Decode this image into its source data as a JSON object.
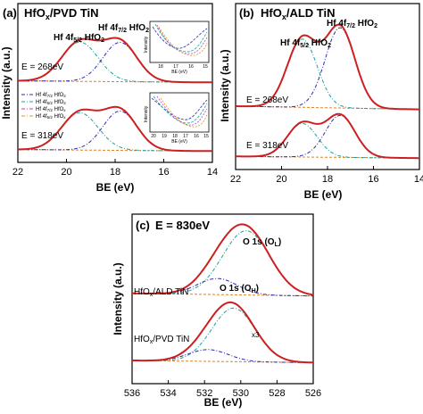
{
  "chart_data": [
    {
      "type": "line",
      "panel_label": "(a)",
      "title": "HfOx/PVD TiN",
      "title_main": "HfO",
      "title_sub": "x",
      "title_rest": "/PVD TiN",
      "xlabel": "BE (eV)",
      "ylabel": "Intensity (a.u.)",
      "xlim": [
        22,
        14
      ],
      "xticks": [
        "22",
        "20",
        "18",
        "16",
        "14"
      ],
      "peak_labels": [
        {
          "text": "Hf 4f",
          "sub": "5/2",
          "rest": " HfO",
          "sub2": "2"
        },
        {
          "text": "Hf 4f",
          "sub": "7/2",
          "rest": " HfO",
          "sub2": "2"
        }
      ],
      "energy_labels": [
        "E = 268eV",
        "E = 318eV"
      ],
      "legend": [
        {
          "text": "Hf 4f",
          "sub": "7/2",
          "rest": " HfO",
          "sub2": "2",
          "color": "#2a2ab0"
        },
        {
          "text": "Hf 4f",
          "sub": "5/2",
          "rest": " HfO",
          "sub2": "2",
          "color": "#1aa0a0"
        },
        {
          "text": "Hf 4f",
          "sub": "7/2",
          "rest": " HfO",
          "sub2": "x",
          "color": "#c040c0"
        },
        {
          "text": "Hf 4f",
          "sub": "5/2",
          "rest": " HfO",
          "sub2": "x",
          "color": "#d0a020"
        }
      ],
      "series": [
        {
          "energy": "E = 268eV",
          "peaks": [
            {
              "center": 19.45,
              "amplitude": 1.0,
              "width": 0.75
            },
            {
              "center": 17.8,
              "amplitude": 1.0,
              "width": 0.7
            }
          ]
        },
        {
          "energy": "E = 318eV",
          "peaks": [
            {
              "center": 19.45,
              "amplitude": 0.95,
              "width": 0.75
            },
            {
              "center": 17.8,
              "amplitude": 1.0,
              "width": 0.7
            }
          ]
        }
      ],
      "insets": [
        {
          "ylabel": "Intensity",
          "xlabel": "BE (eV)",
          "xticks": [
            "18",
            "17",
            "16",
            "15"
          ]
        },
        {
          "ylabel": "Intensity",
          "xlabel": "BE (eV)",
          "xticks": [
            "20",
            "19",
            "18",
            "17",
            "16",
            "15"
          ]
        }
      ]
    },
    {
      "type": "line",
      "panel_label": "(b)",
      "title": "HfOx/ALD TiN",
      "title_main": "HfO",
      "title_sub": "x",
      "title_rest": "/ALD TiN",
      "xlabel": "BE (eV)",
      "ylabel": "Intensity (a.u.)",
      "xlim": [
        22,
        14
      ],
      "xticks": [
        "22",
        "20",
        "18",
        "16",
        "14"
      ],
      "peak_labels": [
        {
          "text": "Hf 4f",
          "sub": "5/2",
          "rest": " HfO",
          "sub2": "2"
        },
        {
          "text": "Hf 4f",
          "sub": "7/2",
          "rest": " HfO",
          "sub2": "2"
        }
      ],
      "energy_labels": [
        "E = 268eV",
        "E = 318eV"
      ],
      "series": [
        {
          "energy": "E = 268eV",
          "peaks": [
            {
              "center": 19.1,
              "amplitude": 0.85,
              "width": 0.65
            },
            {
              "center": 17.45,
              "amplitude": 1.0,
              "width": 0.65
            }
          ]
        },
        {
          "energy": "E = 318eV",
          "peaks": [
            {
              "center": 19.1,
              "amplitude": 0.8,
              "width": 0.65
            },
            {
              "center": 17.45,
              "amplitude": 1.0,
              "width": 0.65
            }
          ]
        }
      ]
    },
    {
      "type": "line",
      "panel_label": "(c)",
      "title": "E = 830eV",
      "xlabel": "BE (eV)",
      "ylabel": "Intensity (a.u.)",
      "xlim": [
        536,
        526
      ],
      "xticks": [
        "536",
        "534",
        "532",
        "530",
        "528",
        "526"
      ],
      "peak_labels": [
        {
          "text": "O 1s (O",
          "sub": "L",
          "rest": ")"
        },
        {
          "text": "O 1s (O",
          "sub": "H",
          "rest": ")"
        }
      ],
      "sample_labels": [
        {
          "text": "HfO",
          "sub": "x",
          "rest": "/ALD TiN"
        },
        {
          "text": "HfO",
          "sub": "x",
          "rest": "/PVD TiN"
        }
      ],
      "scale_note": "x3",
      "series": [
        {
          "sample": "HfOx/ALD TiN",
          "peaks": [
            {
              "center": 529.7,
              "amplitude": 1.0,
              "width": 1.3
            },
            {
              "center": 531.3,
              "amplitude": 0.25,
              "width": 1.1
            }
          ]
        },
        {
          "sample": "HfOx/PVD TiN",
          "peaks": [
            {
              "center": 530.4,
              "amplitude": 1.0,
              "width": 1.2
            },
            {
              "center": 531.8,
              "amplitude": 0.22,
              "width": 1.1
            }
          ]
        }
      ]
    }
  ],
  "colors": {
    "fit": "#cc2020",
    "data": "#333333",
    "peak_a": "#2a2ab0",
    "peak_b": "#1aa0a0",
    "background": "#e08020"
  }
}
